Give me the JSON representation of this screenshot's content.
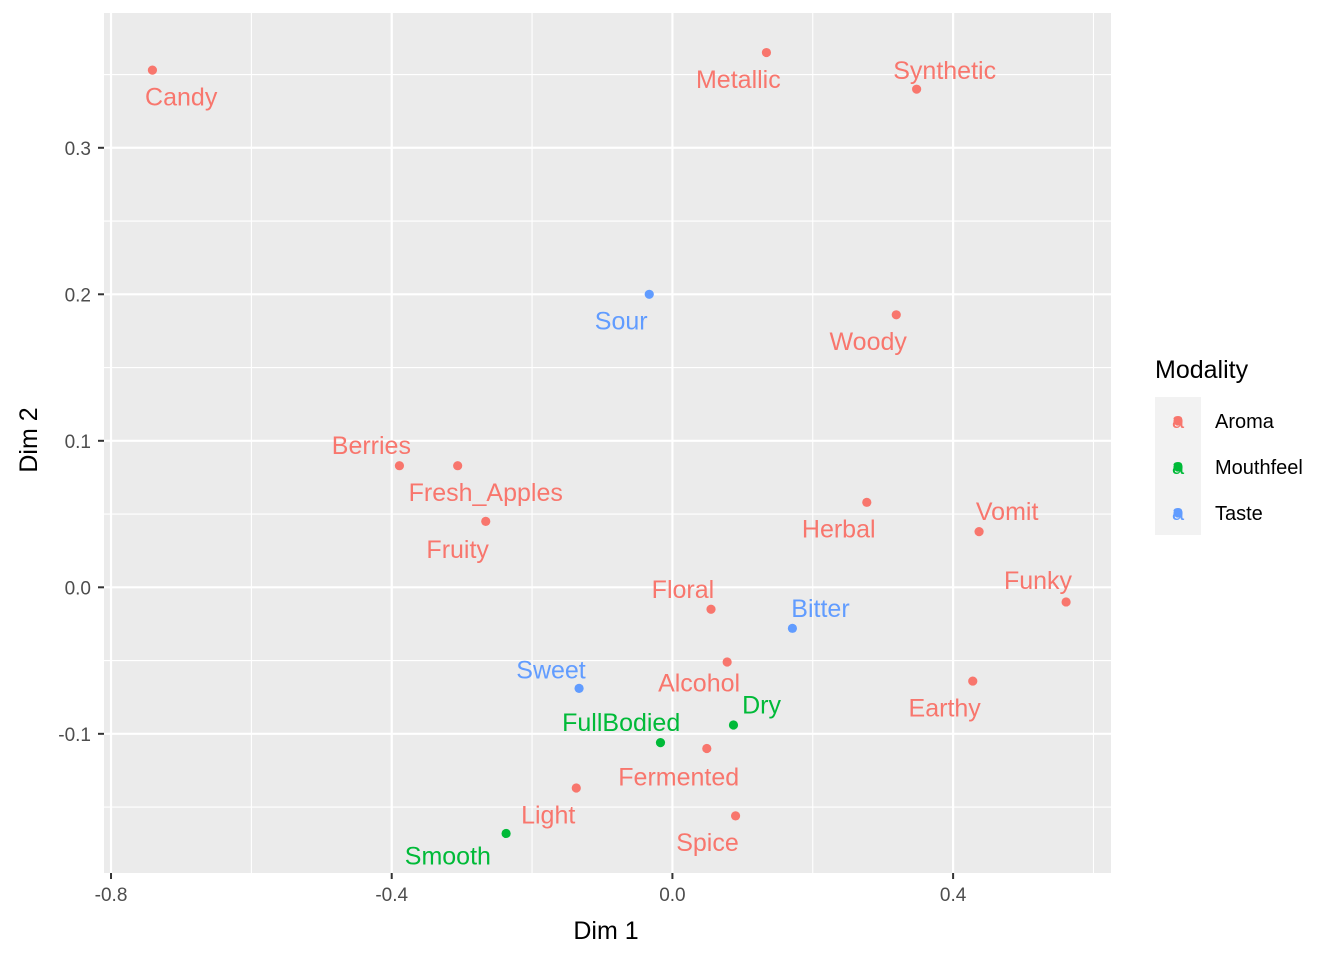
{
  "chart_data": {
    "type": "scatter",
    "xlabel": "Dim 1",
    "ylabel": "Dim 2",
    "xlim": [
      -0.81,
      0.625
    ],
    "ylim": [
      -0.195,
      0.392
    ],
    "x_ticks": [
      -0.8,
      -0.4,
      0.0,
      0.4
    ],
    "x_tick_labels": [
      "-0.8",
      "-0.4",
      "0.0",
      "0.4"
    ],
    "y_ticks": [
      -0.1,
      0.0,
      0.1,
      0.2,
      0.3
    ],
    "y_tick_labels": [
      "-0.1",
      "0.0",
      "0.1",
      "0.2",
      "0.3"
    ],
    "grid": true,
    "legend": {
      "title": "Modality",
      "position": "right",
      "key_glyph": "a",
      "entries": [
        {
          "name": "Aroma",
          "color": "#F8766D"
        },
        {
          "name": "Mouthfeel",
          "color": "#00BA38"
        },
        {
          "name": "Taste",
          "color": "#619CFF"
        }
      ]
    },
    "points": [
      {
        "label": "Candy",
        "x": -0.741,
        "y": 0.353,
        "group": "Aroma",
        "label_x": -0.7,
        "label_y": 0.335
      },
      {
        "label": "Metallic",
        "x": 0.134,
        "y": 0.365,
        "group": "Aroma",
        "label_x": 0.094,
        "label_y": 0.347
      },
      {
        "label": "Synthetic",
        "x": 0.348,
        "y": 0.34,
        "group": "Aroma",
        "label_x": 0.388,
        "label_y": 0.353
      },
      {
        "label": "Sour",
        "x": -0.033,
        "y": 0.2,
        "group": "Taste",
        "label_x": -0.073,
        "label_y": 0.182
      },
      {
        "label": "Woody",
        "x": 0.319,
        "y": 0.186,
        "group": "Aroma",
        "label_x": 0.279,
        "label_y": 0.168
      },
      {
        "label": "Berries",
        "x": -0.389,
        "y": 0.083,
        "group": "Aroma",
        "label_x": -0.429,
        "label_y": 0.097
      },
      {
        "label": "Fresh_Apples",
        "x": -0.306,
        "y": 0.083,
        "group": "Aroma",
        "label_x": -0.266,
        "label_y": 0.065
      },
      {
        "label": "Fruity",
        "x": -0.266,
        "y": 0.045,
        "group": "Aroma",
        "label_x": -0.306,
        "label_y": 0.026
      },
      {
        "label": "Herbal",
        "x": 0.277,
        "y": 0.058,
        "group": "Aroma",
        "label_x": 0.237,
        "label_y": 0.04
      },
      {
        "label": "Vomit",
        "x": 0.437,
        "y": 0.038,
        "group": "Aroma",
        "label_x": 0.477,
        "label_y": 0.052
      },
      {
        "label": "Funky",
        "x": 0.561,
        "y": -0.01,
        "group": "Aroma",
        "label_x": 0.521,
        "label_y": 0.005
      },
      {
        "label": "Floral",
        "x": 0.055,
        "y": -0.015,
        "group": "Aroma",
        "label_x": 0.015,
        "label_y": -0.001
      },
      {
        "label": "Bitter",
        "x": 0.171,
        "y": -0.028,
        "group": "Taste",
        "label_x": 0.211,
        "label_y": -0.014
      },
      {
        "label": "Alcohol",
        "x": 0.078,
        "y": -0.051,
        "group": "Aroma",
        "label_x": 0.038,
        "label_y": -0.065
      },
      {
        "label": "Sweet",
        "x": -0.133,
        "y": -0.069,
        "group": "Taste",
        "label_x": -0.173,
        "label_y": -0.056
      },
      {
        "label": "Earthy",
        "x": 0.428,
        "y": -0.064,
        "group": "Aroma",
        "label_x": 0.388,
        "label_y": -0.082
      },
      {
        "label": "Dry",
        "x": 0.087,
        "y": -0.094,
        "group": "Mouthfeel",
        "label_x": 0.127,
        "label_y": -0.08
      },
      {
        "label": "FullBodied",
        "x": -0.017,
        "y": -0.106,
        "group": "Mouthfeel",
        "label_x": -0.073,
        "label_y": -0.092
      },
      {
        "label": "Fermented",
        "x": 0.049,
        "y": -0.11,
        "group": "Aroma",
        "label_x": 0.009,
        "label_y": -0.129
      },
      {
        "label": "Light",
        "x": -0.137,
        "y": -0.137,
        "group": "Aroma",
        "label_x": -0.177,
        "label_y": -0.155
      },
      {
        "label": "Spice",
        "x": 0.09,
        "y": -0.156,
        "group": "Aroma",
        "label_x": 0.05,
        "label_y": -0.174
      },
      {
        "label": "Smooth",
        "x": -0.237,
        "y": -0.168,
        "group": "Mouthfeel",
        "label_x": -0.32,
        "label_y": -0.183
      }
    ]
  }
}
